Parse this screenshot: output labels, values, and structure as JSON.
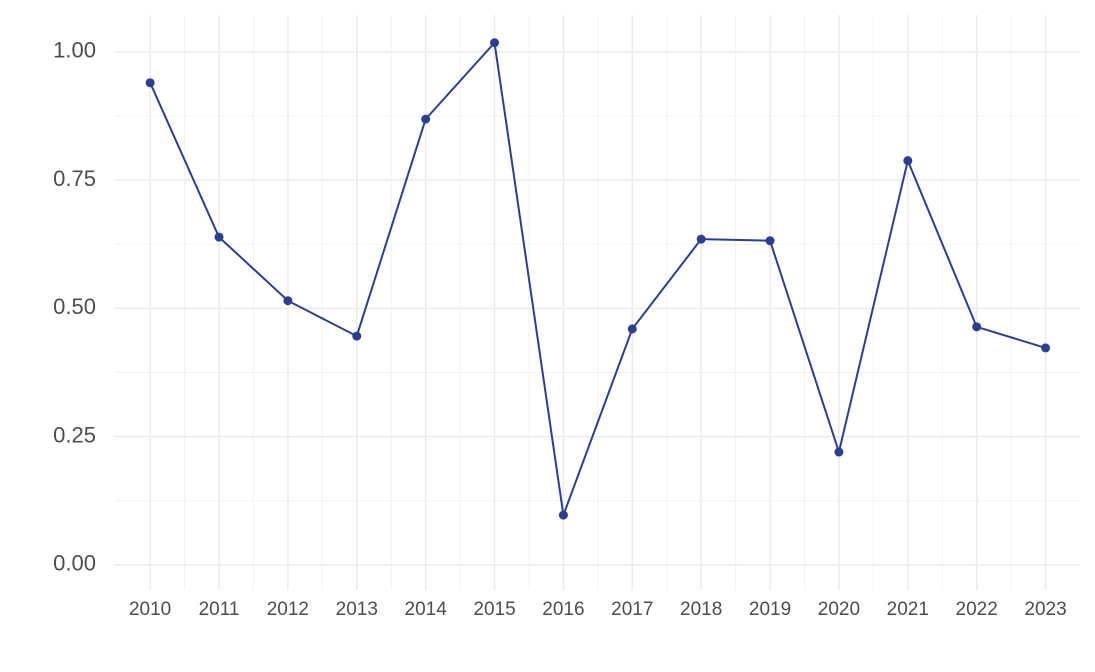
{
  "chart_data": {
    "type": "line",
    "x": [
      2010,
      2011,
      2012,
      2013,
      2014,
      2015,
      2016,
      2017,
      2018,
      2019,
      2020,
      2021,
      2022,
      2023
    ],
    "series": [
      {
        "color": "#2b3f8f",
        "values": [
          0.94,
          0.639,
          0.515,
          0.446,
          0.869,
          1.018,
          0.097,
          0.46,
          0.635,
          0.632,
          0.22,
          0.788,
          0.464,
          0.423
        ]
      }
    ],
    "xlim": [
      2009.49,
      2023.5
    ],
    "ylim": [
      -0.049,
      1.072
    ],
    "xticks": [
      2010,
      2011,
      2012,
      2013,
      2014,
      2015,
      2016,
      2017,
      2018,
      2019,
      2020,
      2021,
      2022,
      2023
    ],
    "yticks": [
      {
        "value": 0,
        "label": "0.00"
      },
      {
        "value": 0.25,
        "label": "0.25"
      },
      {
        "value": 0.5,
        "label": "0.50"
      },
      {
        "value": 0.75,
        "label": "0.75"
      },
      {
        "value": 1,
        "label": "1.00"
      }
    ],
    "grid": true
  }
}
